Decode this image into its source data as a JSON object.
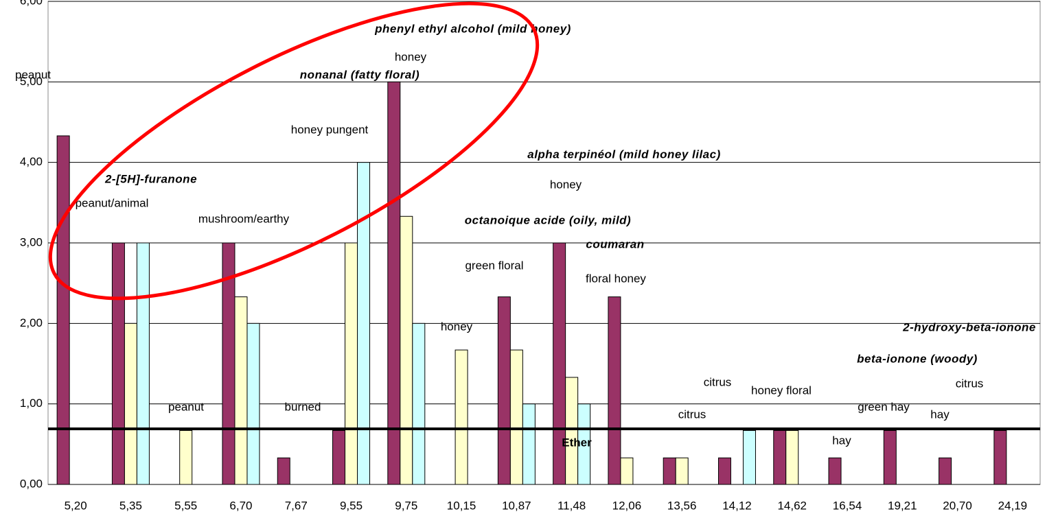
{
  "chart_data": {
    "type": "bar",
    "categories": [
      "5,20",
      "5,35",
      "5,55",
      "6,70",
      "7,67",
      "9,55",
      "9,75",
      "10,15",
      "10,87",
      "11,48",
      "12,06",
      "13,56",
      "14,12",
      "14,62",
      "16,54",
      "19,21",
      "20,70",
      "24,19"
    ],
    "series": [
      {
        "color": "#993366",
        "values": [
          4.33,
          3,
          0,
          3,
          0.33,
          0.67,
          5,
          0,
          2.33,
          3,
          2.33,
          0.33,
          0.33,
          0.67,
          0.33,
          0.67,
          0.33,
          0.67
        ]
      },
      {
        "color": "#ffffcc",
        "values": [
          0,
          2,
          0.67,
          2.33,
          0,
          3,
          3.33,
          1.67,
          1.67,
          1.33,
          0.33,
          0.33,
          0,
          0.67,
          0,
          0,
          0,
          0
        ]
      },
      {
        "color": "#ccffff",
        "values": [
          0,
          3,
          0,
          2,
          0,
          4,
          2,
          0,
          1,
          1,
          0,
          0,
          0.67,
          0,
          0,
          0,
          0,
          0
        ]
      }
    ],
    "ylim": [
      0,
      6
    ],
    "yticks": [
      {
        "value": 0,
        "label": "0,00"
      },
      {
        "value": 1,
        "label": "1,00"
      },
      {
        "value": 2,
        "label": "2,00"
      },
      {
        "value": 3,
        "label": "3,00"
      },
      {
        "value": 4,
        "label": "4,00"
      },
      {
        "value": 5,
        "label": "5,00"
      },
      {
        "value": 6,
        "label": "6,00"
      }
    ],
    "grid": true,
    "threshold": 0.69,
    "annotations": [
      {
        "text": "peanut",
        "style": "plain"
      },
      {
        "text": "phenyl ethyl alcohol (mild honey)",
        "style": "bold-italic"
      },
      {
        "text": "honey",
        "style": "plain"
      },
      {
        "text": "nonanal (fatty floral)",
        "style": "bold-italic"
      },
      {
        "text": "honey pungent",
        "style": "plain"
      },
      {
        "text": "alpha terpinéol (mild honey lilac)",
        "style": "bold-italic"
      },
      {
        "text": "2-[5H]-furanone",
        "style": "bold-italic"
      },
      {
        "text": "honey",
        "style": "plain"
      },
      {
        "text": "peanut/animal",
        "style": "plain"
      },
      {
        "text": "mushroom/earthy",
        "style": "plain"
      },
      {
        "text": "octanoique acide (oily, mild)",
        "style": "bold-italic"
      },
      {
        "text": "coumaran",
        "style": "bold-italic"
      },
      {
        "text": "green floral",
        "style": "plain"
      },
      {
        "text": "floral honey",
        "style": "plain"
      },
      {
        "text": "honey",
        "style": "plain"
      },
      {
        "text": "2-hydroxy-beta-ionone",
        "style": "bold-italic"
      },
      {
        "text": "beta-ionone (woody)",
        "style": "bold-italic"
      },
      {
        "text": "citrus",
        "style": "plain"
      },
      {
        "text": "honey floral",
        "style": "plain"
      },
      {
        "text": "citrus",
        "style": "plain"
      },
      {
        "text": "peanut",
        "style": "plain"
      },
      {
        "text": "burned",
        "style": "plain"
      },
      {
        "text": "green hay",
        "style": "plain"
      },
      {
        "text": "citrus",
        "style": "plain"
      },
      {
        "text": "hay",
        "style": "plain"
      },
      {
        "text": "hay",
        "style": "plain"
      },
      {
        "text": "Ether",
        "style": "bold"
      }
    ]
  }
}
